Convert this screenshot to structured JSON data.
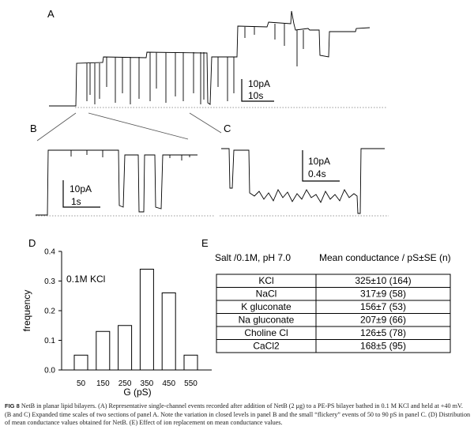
{
  "panels": {
    "a": "A",
    "b": "B",
    "c": "C",
    "d": "D",
    "e": "E"
  },
  "scalebars": {
    "a": {
      "current": "10pA",
      "time": "10s"
    },
    "b": {
      "current": "10pA",
      "time": "1s"
    },
    "c": {
      "current": "10pA",
      "time": "0.4s"
    }
  },
  "chart_data": {
    "type": "bar",
    "categories": [
      "50",
      "150",
      "250",
      "350",
      "450",
      "550"
    ],
    "values": [
      0.05,
      0.13,
      0.15,
      0.34,
      0.26,
      0.05
    ],
    "xlabel": "G (pS)",
    "ylabel": "frequency",
    "ylim": [
      0,
      0.4
    ],
    "yticks": [
      "0.0",
      "0.1",
      "0.2",
      "0.3",
      "0.4"
    ],
    "annotation": "0.1M KCl"
  },
  "table": {
    "header_salt": "Salt /0.1M, pH 7.0",
    "header_conductance": "Mean conductance / pS±SE (n)",
    "rows": [
      {
        "salt": "KCl",
        "value": "325±10 (164)"
      },
      {
        "salt": "NaCl",
        "value": "317±9 (58)"
      },
      {
        "salt": "K gluconate",
        "value": "156±7 (53)"
      },
      {
        "salt": "Na gluconate",
        "value": "207±9 (66)"
      },
      {
        "salt": "Choline Cl",
        "value": "126±5 (78)"
      },
      {
        "salt": "CaCl2",
        "value": "168±5 (95)"
      }
    ]
  },
  "caption": {
    "label": "FIG 8",
    "text": "NetB in planar lipid bilayers. (A) Representative single-channel events recorded after addition of NetB (2 μg) to a PE-PS bilayer bathed in 0.1 M KCl and held at +40 mV. (B and C) Expanded time scales of two sections of panel A. Note the variation in closed levels in panel B and the small “flickery” events of 50 to 90 pS in panel C. (D) Distribution of mean conductance values obtained for NetB. (E) Effect of ion replacement on mean conductance values."
  }
}
